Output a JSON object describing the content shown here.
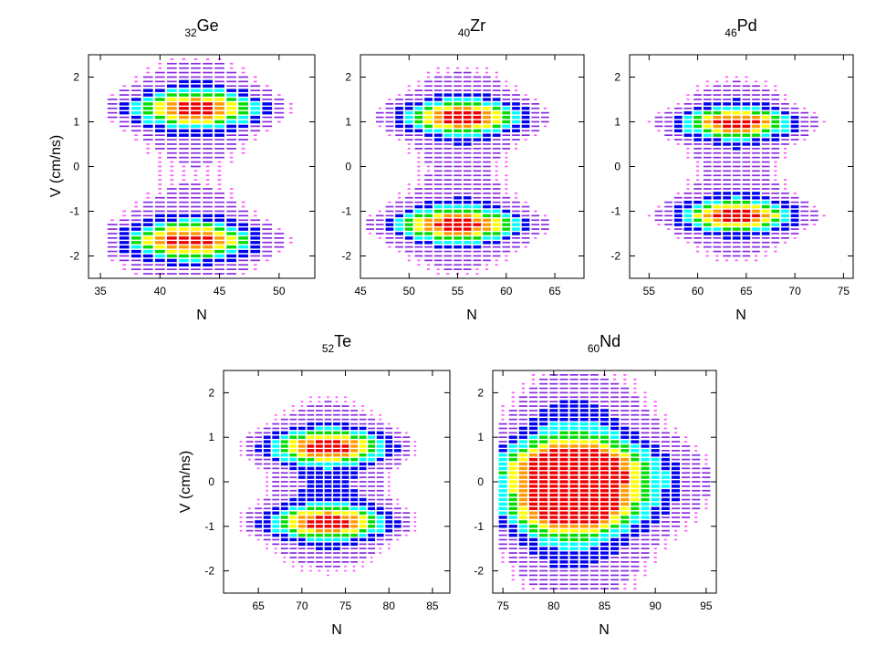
{
  "chart_data": [
    {
      "type": "heatmap",
      "title": {
        "sub": "32",
        "main": "Ge"
      },
      "xlabel": "N",
      "ylabel": "V (cm/ns)",
      "xlim": [
        34,
        53
      ],
      "ylim": [
        -2.5,
        2.5
      ],
      "xticks": [
        35,
        40,
        45,
        50
      ],
      "yticks": [
        -2,
        -1,
        0,
        1,
        2
      ],
      "n_range": [
        36,
        51
      ],
      "blobs": [
        {
          "n_center": 43,
          "n_sigma": 3.5,
          "v_center": 1.28,
          "v_sigma": 0.24,
          "weight": 1.0
        },
        {
          "n_center": 42.5,
          "n_sigma": 3.6,
          "v_center": -1.65,
          "v_sigma": 0.24,
          "weight": 1.0
        }
      ]
    },
    {
      "type": "heatmap",
      "title": {
        "sub": "40",
        "main": "Zr"
      },
      "xlabel": "N",
      "ylabel": "",
      "xlim": [
        45,
        68
      ],
      "ylim": [
        -2.5,
        2.5
      ],
      "xticks": [
        45,
        50,
        55,
        60,
        65
      ],
      "yticks": [
        -2,
        -1,
        0,
        1,
        2
      ],
      "n_range": [
        46,
        64
      ],
      "blobs": [
        {
          "n_center": 55.5,
          "n_sigma": 4.0,
          "v_center": 1.1,
          "v_sigma": 0.22,
          "weight": 1.0
        },
        {
          "n_center": 55,
          "n_sigma": 4.2,
          "v_center": -1.3,
          "v_sigma": 0.22,
          "weight": 1.0
        }
      ]
    },
    {
      "type": "heatmap",
      "title": {
        "sub": "46",
        "main": "Pd"
      },
      "xlabel": "N",
      "ylabel": "",
      "xlim": [
        53,
        76
      ],
      "ylim": [
        -2.5,
        2.5
      ],
      "xticks": [
        55,
        60,
        65,
        70,
        75
      ],
      "yticks": [
        -2,
        -1,
        0,
        1,
        2
      ],
      "n_range": [
        55,
        73
      ],
      "blobs": [
        {
          "n_center": 64,
          "n_sigma": 3.8,
          "v_center": 0.97,
          "v_sigma": 0.2,
          "weight": 1.0
        },
        {
          "n_center": 64,
          "n_sigma": 3.8,
          "v_center": -1.1,
          "v_sigma": 0.2,
          "weight": 1.0
        }
      ]
    },
    {
      "type": "heatmap",
      "title": {
        "sub": "52",
        "main": "Te"
      },
      "xlabel": "N",
      "ylabel": "V (cm/ns)",
      "xlim": [
        61,
        87
      ],
      "ylim": [
        -2.5,
        2.5
      ],
      "xticks": [
        65,
        70,
        75,
        80,
        85
      ],
      "yticks": [
        -2,
        -1,
        0,
        1,
        2
      ],
      "n_range": [
        62,
        84
      ],
      "blobs": [
        {
          "n_center": 73,
          "n_sigma": 4.5,
          "v_center": 0.78,
          "v_sigma": 0.22,
          "weight": 1.0
        },
        {
          "n_center": 73,
          "n_sigma": 4.5,
          "v_center": -0.92,
          "v_sigma": 0.22,
          "weight": 1.0
        }
      ]
    },
    {
      "type": "heatmap",
      "title": {
        "sub": "60",
        "main": "Nd"
      },
      "xlabel": "N",
      "ylabel": "",
      "xlim": [
        74,
        96
      ],
      "ylim": [
        -2.5,
        2.5
      ],
      "xticks": [
        75,
        80,
        85,
        90,
        95
      ],
      "yticks": [
        -2,
        -1,
        0,
        1,
        2
      ],
      "n_range": [
        75,
        95
      ],
      "blobs": [
        {
          "n_center": 81.5,
          "n_sigma": 3.8,
          "v_center": 0.3,
          "v_sigma": 0.35,
          "weight": 1.0
        },
        {
          "n_center": 81.5,
          "n_sigma": 3.8,
          "v_center": -0.6,
          "v_sigma": 0.35,
          "weight": 0.85
        },
        {
          "n_center": 84,
          "n_sigma": 6.0,
          "v_center": 0.0,
          "v_sigma": 0.55,
          "weight": 0.55
        }
      ]
    }
  ],
  "colorscale": [
    "#ff55ff",
    "#8a2be2",
    "#0000ee",
    "#00ffff",
    "#00dd00",
    "#ffff00",
    "#ff9900",
    "#ee0000"
  ]
}
